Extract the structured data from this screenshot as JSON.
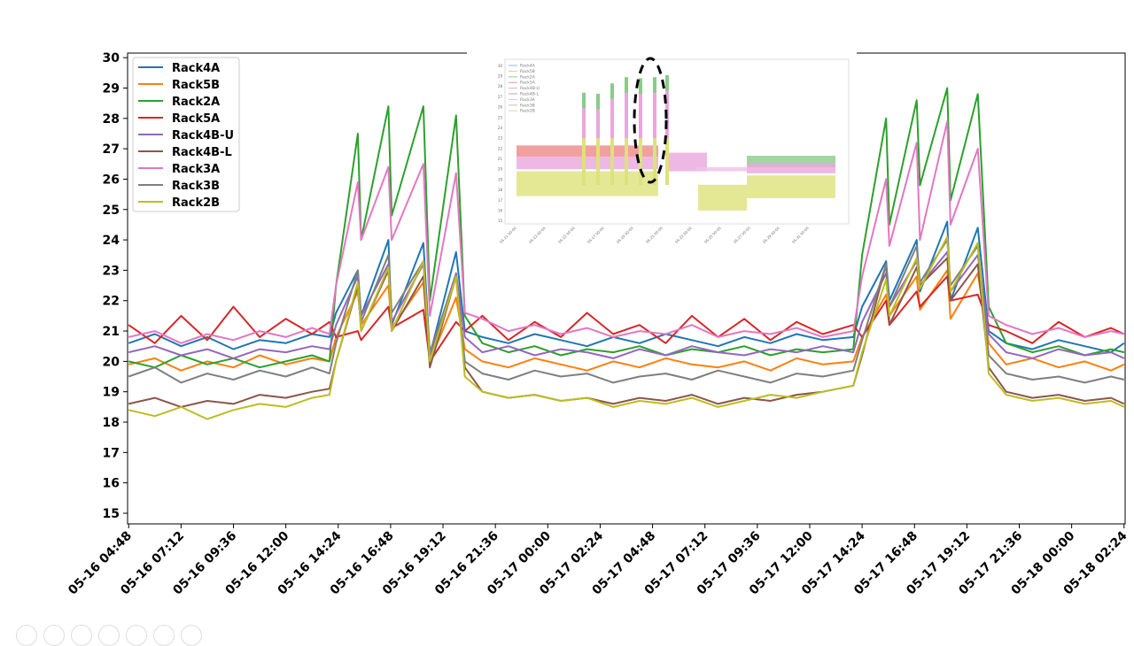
{
  "chart_data": {
    "type": "line",
    "title": "",
    "xlabel": "",
    "ylabel": "",
    "ylim": [
      14.65,
      30.15
    ],
    "xlim_hours_from_05_16_00_00": [
      4.75,
      50.45
    ],
    "y_ticks": [
      15,
      16,
      17,
      18,
      19,
      20,
      21,
      22,
      23,
      24,
      25,
      26,
      27,
      28,
      29,
      30
    ],
    "x_ticks": [
      4.8,
      7.2,
      9.6,
      12.0,
      14.4,
      16.8,
      19.2,
      21.6,
      24.0,
      26.4,
      28.8,
      31.2,
      33.6,
      36.0,
      38.4,
      40.8,
      43.2,
      45.6,
      48.0,
      50.4
    ],
    "x_tick_labels": [
      "05-16 04:48",
      "05-16 07:12",
      "05-16 09:36",
      "05-16 12:00",
      "05-16 14:24",
      "05-16 16:48",
      "05-16 19:12",
      "05-16 21:36",
      "05-17 00:00",
      "05-17 02:24",
      "05-17 04:48",
      "05-17 07:12",
      "05-17 09:36",
      "05-17 12:00",
      "05-17 14:24",
      "05-17 16:48",
      "05-17 19:12",
      "05-17 21:36",
      "05-18 00:00",
      "05-18 02:24"
    ],
    "legend_position": "top-left",
    "grid": false,
    "x": [
      4.8,
      6.0,
      7.2,
      8.4,
      9.6,
      10.8,
      12.0,
      13.2,
      14.0,
      14.3,
      15.3,
      15.45,
      16.7,
      16.85,
      18.3,
      18.6,
      19.8,
      20.2,
      21.0,
      22.2,
      23.4,
      24.6,
      25.8,
      27.0,
      28.2,
      29.4,
      30.6,
      31.8,
      33.0,
      34.2,
      35.4,
      36.6,
      38.0,
      38.4,
      39.5,
      39.65,
      40.9,
      41.05,
      42.3,
      42.45,
      43.7,
      44.2,
      45.0,
      46.2,
      47.4,
      48.6,
      49.8,
      50.4
    ],
    "series": [
      {
        "name": "Rack4A",
        "color": "#1f77b4",
        "values": [
          20.6,
          20.9,
          20.5,
          20.8,
          20.4,
          20.7,
          20.6,
          20.9,
          20.8,
          21.6,
          23.0,
          21.5,
          24.0,
          21.2,
          23.9,
          20.2,
          23.6,
          21.0,
          20.8,
          20.6,
          20.9,
          20.7,
          20.5,
          20.8,
          20.6,
          20.9,
          20.7,
          20.5,
          20.8,
          20.6,
          20.9,
          20.7,
          20.8,
          21.8,
          23.3,
          22.0,
          24.0,
          22.3,
          24.6,
          22.0,
          24.4,
          21.0,
          20.6,
          20.4,
          20.7,
          20.5,
          20.3,
          20.6
        ]
      },
      {
        "name": "Rack5B",
        "color": "#ff7f0e",
        "values": [
          19.9,
          20.1,
          19.7,
          20.0,
          19.8,
          20.2,
          19.9,
          20.1,
          20.0,
          20.8,
          22.3,
          21.2,
          22.5,
          21.1,
          22.6,
          20.0,
          22.1,
          20.4,
          20.0,
          19.8,
          20.1,
          19.9,
          19.7,
          20.0,
          19.8,
          20.1,
          19.9,
          19.8,
          20.0,
          19.7,
          20.1,
          19.9,
          20.0,
          20.8,
          22.2,
          21.5,
          22.8,
          21.7,
          23.0,
          21.4,
          22.9,
          20.6,
          19.9,
          20.1,
          19.8,
          20.0,
          19.7,
          19.9
        ]
      },
      {
        "name": "Rack2A",
        "color": "#2ca02c",
        "values": [
          20.0,
          19.8,
          20.2,
          19.9,
          20.1,
          19.8,
          20.0,
          20.2,
          20.0,
          22.5,
          27.5,
          24.0,
          28.4,
          24.8,
          28.4,
          22.0,
          28.1,
          21.5,
          20.6,
          20.3,
          20.5,
          20.2,
          20.4,
          20.3,
          20.5,
          20.2,
          20.4,
          20.3,
          20.5,
          20.2,
          20.4,
          20.3,
          20.4,
          23.5,
          28.0,
          24.5,
          28.6,
          25.8,
          29.0,
          25.3,
          28.8,
          21.8,
          20.6,
          20.3,
          20.5,
          20.2,
          20.4,
          20.3
        ]
      },
      {
        "name": "Rack5A",
        "color": "#d62728",
        "values": [
          21.2,
          20.6,
          21.5,
          20.7,
          21.8,
          20.8,
          21.4,
          20.9,
          21.3,
          20.8,
          21.0,
          20.7,
          21.8,
          21.1,
          21.7,
          20.0,
          21.3,
          21.0,
          21.5,
          20.7,
          21.3,
          20.8,
          21.6,
          20.9,
          21.2,
          20.6,
          21.5,
          20.8,
          21.4,
          20.7,
          21.3,
          20.9,
          21.2,
          20.8,
          22.0,
          21.2,
          22.3,
          21.8,
          22.8,
          22.0,
          22.2,
          21.2,
          21.0,
          20.6,
          21.3,
          20.8,
          21.1,
          20.9
        ]
      },
      {
        "name": "Rack4B-U",
        "color": "#9467bd",
        "values": [
          20.3,
          20.5,
          20.2,
          20.4,
          20.1,
          20.4,
          20.3,
          20.5,
          20.4,
          21.2,
          22.8,
          21.5,
          23.2,
          21.3,
          23.2,
          20.2,
          22.9,
          20.8,
          20.3,
          20.5,
          20.2,
          20.4,
          20.3,
          20.1,
          20.4,
          20.2,
          20.5,
          20.3,
          20.2,
          20.4,
          20.3,
          20.5,
          20.3,
          21.3,
          22.9,
          21.8,
          23.3,
          22.5,
          23.6,
          22.3,
          23.5,
          20.9,
          20.3,
          20.1,
          20.4,
          20.2,
          20.3,
          20.1
        ]
      },
      {
        "name": "Rack4B-L",
        "color": "#8c564b",
        "values": [
          18.6,
          18.8,
          18.5,
          18.7,
          18.6,
          18.9,
          18.8,
          19.0,
          19.1,
          20.0,
          22.5,
          21.0,
          23.0,
          21.0,
          22.8,
          19.8,
          22.8,
          19.8,
          19.0,
          18.8,
          18.9,
          18.7,
          18.8,
          18.6,
          18.8,
          18.7,
          18.9,
          18.6,
          18.8,
          18.7,
          18.9,
          19.0,
          19.2,
          20.2,
          23.2,
          21.2,
          23.1,
          22.5,
          23.4,
          22.0,
          23.2,
          19.8,
          19.0,
          18.8,
          18.9,
          18.7,
          18.8,
          18.6
        ]
      },
      {
        "name": "Rack3A",
        "color": "#e377c2",
        "values": [
          20.8,
          21.0,
          20.6,
          20.9,
          20.7,
          21.0,
          20.8,
          21.1,
          20.9,
          22.5,
          25.9,
          24.0,
          26.4,
          24.0,
          26.5,
          21.5,
          26.2,
          21.6,
          21.4,
          21.0,
          21.2,
          20.9,
          21.1,
          20.8,
          21.0,
          20.9,
          21.2,
          20.8,
          21.0,
          20.9,
          21.1,
          20.8,
          21.0,
          22.8,
          26.0,
          23.8,
          27.2,
          24.0,
          27.9,
          24.5,
          27.0,
          21.5,
          21.2,
          20.9,
          21.1,
          20.8,
          21.0,
          20.9
        ]
      },
      {
        "name": "Rack3B",
        "color": "#7f7f7f",
        "values": [
          19.5,
          19.8,
          19.3,
          19.6,
          19.4,
          19.7,
          19.5,
          19.8,
          19.6,
          20.6,
          23.0,
          21.3,
          23.5,
          21.6,
          23.3,
          20.3,
          22.8,
          20.0,
          19.6,
          19.4,
          19.7,
          19.5,
          19.6,
          19.3,
          19.5,
          19.6,
          19.4,
          19.7,
          19.5,
          19.3,
          19.6,
          19.5,
          19.7,
          20.7,
          23.2,
          21.8,
          23.8,
          22.6,
          24.0,
          22.5,
          23.8,
          20.2,
          19.6,
          19.4,
          19.5,
          19.3,
          19.5,
          19.4
        ]
      },
      {
        "name": "Rack2B",
        "color": "#bcbd22",
        "values": [
          18.4,
          18.2,
          18.5,
          18.1,
          18.4,
          18.6,
          18.5,
          18.8,
          18.9,
          20.0,
          22.6,
          21.0,
          23.1,
          21.0,
          23.3,
          20.0,
          22.8,
          19.5,
          19.0,
          18.8,
          18.9,
          18.7,
          18.8,
          18.5,
          18.7,
          18.6,
          18.8,
          18.5,
          18.7,
          18.9,
          18.8,
          19.0,
          19.2,
          20.3,
          22.7,
          21.5,
          23.4,
          22.4,
          24.1,
          22.3,
          23.9,
          19.6,
          18.9,
          18.7,
          18.8,
          18.6,
          18.7,
          18.5
        ]
      }
    ],
    "inset": {
      "y_ticks": [
        15,
        16,
        17,
        18,
        19,
        20,
        21,
        22,
        23,
        24,
        25,
        26,
        27,
        28,
        29,
        30
      ],
      "x_tick_labels": [
        "05-11 00:00",
        "05-13 00:00",
        "05-15 00:00",
        "05-17 00:00",
        "05-19 00:00",
        "05-21 00:00",
        "05-23 00:00",
        "05-25 00:00",
        "05-27 00:00",
        "05-29 00:00",
        "05-31 00:00"
      ],
      "legend": [
        "Rack4A",
        "Rack5B",
        "Rack2A",
        "Rack5A",
        "Rack4B-U",
        "Rack4B-L",
        "Rack3A",
        "Rack3B",
        "Rack2B"
      ]
    }
  }
}
